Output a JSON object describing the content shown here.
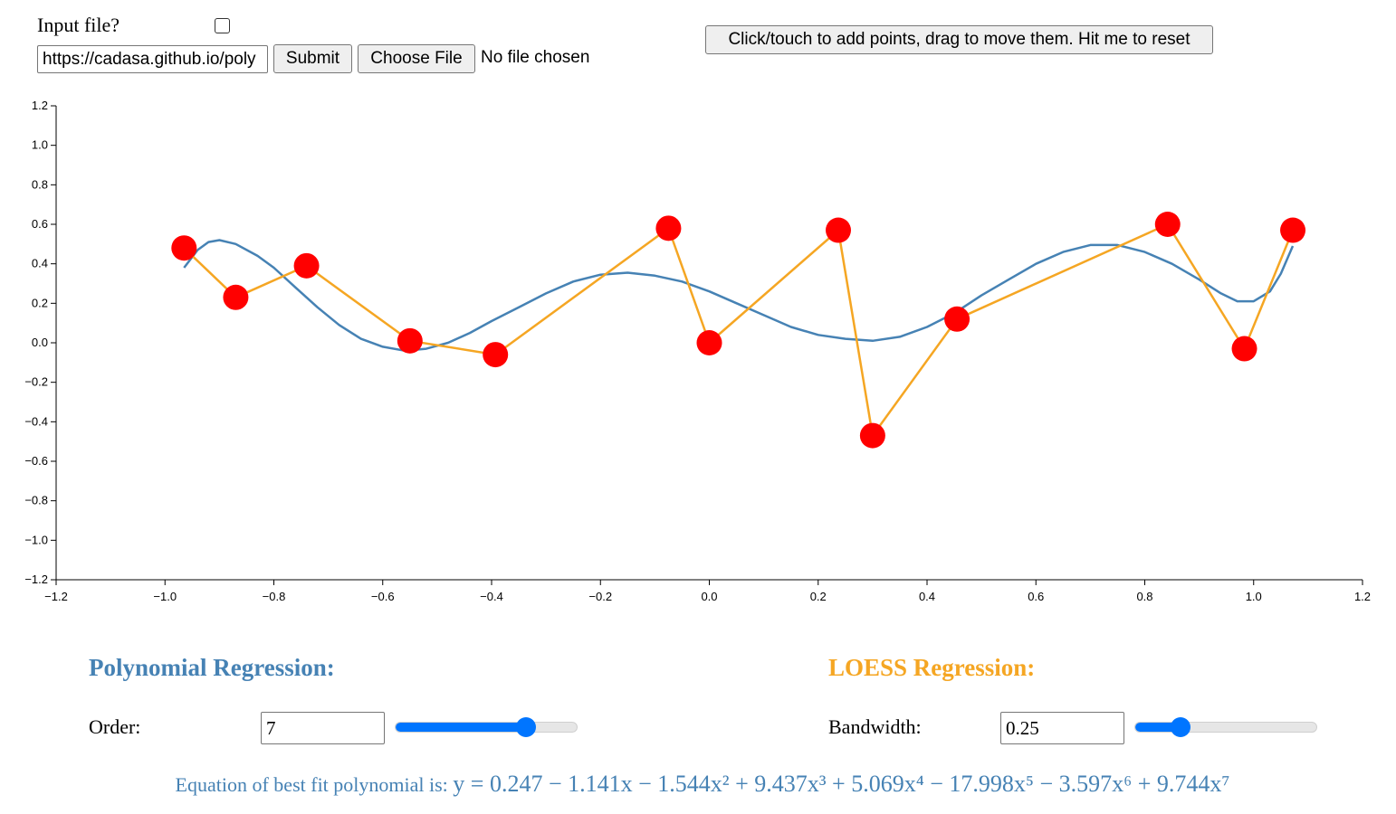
{
  "top": {
    "input_file_label": "Input file?",
    "url_value": "https://cadasa.github.io/poly",
    "submit_label": "Submit",
    "choose_file_label": "Choose File",
    "no_file_text": "No file chosen",
    "reset_button_label": "Click/touch to add points, drag to move them. Hit me to reset"
  },
  "polynomial": {
    "heading": "Polynomial Regression:",
    "order_label": "Order:",
    "order_value": "7",
    "slider_fraction": 0.72,
    "color": "#4682b4"
  },
  "loess": {
    "heading": "LOESS Regression:",
    "bandwidth_label": "Bandwidth:",
    "bandwidth_value": "0.25",
    "slider_fraction": 0.25,
    "color": "#f5a623"
  },
  "equation": {
    "prefix": "Equation of best fit polynomial is: ",
    "formula": "y = 0.247 − 1.141x − 1.544x² + 9.437x³ + 5.069x⁴ − 17.998x⁵ − 3.597x⁶ + 9.744x⁷"
  },
  "chart_data": {
    "type": "scatter",
    "xlim": [
      -1.2,
      1.2
    ],
    "ylim": [
      -1.2,
      1.2
    ],
    "xticks": [
      "−1.2",
      "−1.0",
      "−0.8",
      "−0.6",
      "−0.4",
      "−0.2",
      "0.0",
      "0.2",
      "0.4",
      "0.6",
      "0.8",
      "1.0",
      "1.2"
    ],
    "yticks": [
      "1.2",
      "1.0",
      "0.8",
      "0.6",
      "0.4",
      "0.2",
      "0.0",
      "−0.2",
      "−0.4",
      "−0.6",
      "−0.8",
      "−1.0",
      "−1.2"
    ],
    "xtick_values": [
      -1.2,
      -1.0,
      -0.8,
      -0.6,
      -0.4,
      -0.2,
      0.0,
      0.2,
      0.4,
      0.6,
      0.8,
      1.0,
      1.2
    ],
    "ytick_values": [
      1.2,
      1.0,
      0.8,
      0.6,
      0.4,
      0.2,
      0.0,
      -0.2,
      -0.4,
      -0.6,
      -0.8,
      -1.0,
      -1.2
    ],
    "points": [
      {
        "x": -0.965,
        "y": 0.48
      },
      {
        "x": -0.87,
        "y": 0.23
      },
      {
        "x": -0.74,
        "y": 0.39
      },
      {
        "x": -0.55,
        "y": 0.01
      },
      {
        "x": -0.393,
        "y": -0.06
      },
      {
        "x": -0.075,
        "y": 0.58
      },
      {
        "x": 0.0,
        "y": 0.0
      },
      {
        "x": 0.237,
        "y": 0.57
      },
      {
        "x": 0.3,
        "y": -0.47
      },
      {
        "x": 0.455,
        "y": 0.12
      },
      {
        "x": 0.842,
        "y": 0.6
      },
      {
        "x": 0.983,
        "y": -0.03
      },
      {
        "x": 1.072,
        "y": 0.57
      }
    ],
    "polynomial_curve": [
      {
        "x": -0.965,
        "y": 0.38
      },
      {
        "x": -0.94,
        "y": 0.47
      },
      {
        "x": -0.92,
        "y": 0.51
      },
      {
        "x": -0.9,
        "y": 0.52
      },
      {
        "x": -0.87,
        "y": 0.5
      },
      {
        "x": -0.83,
        "y": 0.44
      },
      {
        "x": -0.8,
        "y": 0.38
      },
      {
        "x": -0.76,
        "y": 0.28
      },
      {
        "x": -0.72,
        "y": 0.18
      },
      {
        "x": -0.68,
        "y": 0.09
      },
      {
        "x": -0.64,
        "y": 0.02
      },
      {
        "x": -0.6,
        "y": -0.02
      },
      {
        "x": -0.56,
        "y": -0.04
      },
      {
        "x": -0.52,
        "y": -0.03
      },
      {
        "x": -0.48,
        "y": 0.0
      },
      {
        "x": -0.44,
        "y": 0.05
      },
      {
        "x": -0.4,
        "y": 0.11
      },
      {
        "x": -0.35,
        "y": 0.18
      },
      {
        "x": -0.3,
        "y": 0.25
      },
      {
        "x": -0.25,
        "y": 0.31
      },
      {
        "x": -0.2,
        "y": 0.345
      },
      {
        "x": -0.15,
        "y": 0.355
      },
      {
        "x": -0.1,
        "y": 0.34
      },
      {
        "x": -0.05,
        "y": 0.31
      },
      {
        "x": 0.0,
        "y": 0.26
      },
      {
        "x": 0.05,
        "y": 0.2
      },
      {
        "x": 0.1,
        "y": 0.14
      },
      {
        "x": 0.15,
        "y": 0.08
      },
      {
        "x": 0.2,
        "y": 0.04
      },
      {
        "x": 0.25,
        "y": 0.02
      },
      {
        "x": 0.3,
        "y": 0.01
      },
      {
        "x": 0.35,
        "y": 0.03
      },
      {
        "x": 0.4,
        "y": 0.08
      },
      {
        "x": 0.45,
        "y": 0.15
      },
      {
        "x": 0.5,
        "y": 0.24
      },
      {
        "x": 0.55,
        "y": 0.32
      },
      {
        "x": 0.6,
        "y": 0.4
      },
      {
        "x": 0.65,
        "y": 0.46
      },
      {
        "x": 0.7,
        "y": 0.495
      },
      {
        "x": 0.75,
        "y": 0.495
      },
      {
        "x": 0.8,
        "y": 0.46
      },
      {
        "x": 0.85,
        "y": 0.4
      },
      {
        "x": 0.9,
        "y": 0.32
      },
      {
        "x": 0.94,
        "y": 0.25
      },
      {
        "x": 0.97,
        "y": 0.21
      },
      {
        "x": 1.0,
        "y": 0.21
      },
      {
        "x": 1.03,
        "y": 0.26
      },
      {
        "x": 1.05,
        "y": 0.35
      },
      {
        "x": 1.072,
        "y": 0.49
      }
    ],
    "loess_line": [
      {
        "x": -0.965,
        "y": 0.48
      },
      {
        "x": -0.87,
        "y": 0.23
      },
      {
        "x": -0.74,
        "y": 0.39
      },
      {
        "x": -0.55,
        "y": 0.01
      },
      {
        "x": -0.393,
        "y": -0.06
      },
      {
        "x": -0.075,
        "y": 0.58
      },
      {
        "x": 0.0,
        "y": 0.0
      },
      {
        "x": 0.237,
        "y": 0.57
      },
      {
        "x": 0.3,
        "y": -0.47
      },
      {
        "x": 0.455,
        "y": 0.12
      },
      {
        "x": 0.842,
        "y": 0.6
      },
      {
        "x": 0.983,
        "y": -0.03
      },
      {
        "x": 1.072,
        "y": 0.57
      }
    ],
    "colors": {
      "points": "#ff0000",
      "polynomial": "#4682b4",
      "loess": "#f5a623"
    }
  }
}
